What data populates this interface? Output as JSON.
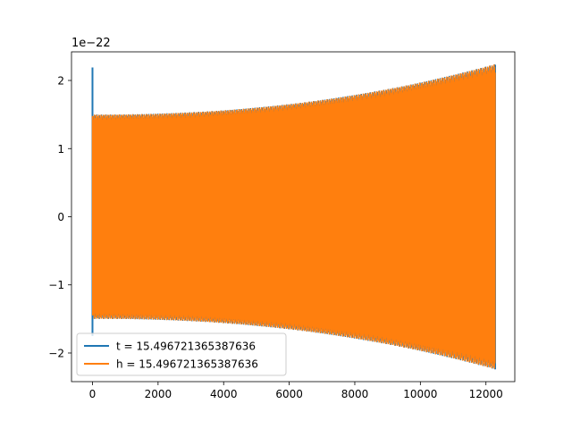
{
  "chart_data": {
    "type": "line",
    "title": "",
    "xlabel": "",
    "ylabel": "",
    "xlim": [
      -640,
      12880
    ],
    "ylim": [
      -2.42,
      2.42
    ],
    "y_scale_label": "1e−22",
    "x_ticks": [
      0,
      2000,
      4000,
      6000,
      8000,
      10000,
      12000
    ],
    "x_tick_labels": [
      "0",
      "2000",
      "4000",
      "6000",
      "8000",
      "10000",
      "12000"
    ],
    "y_ticks": [
      -2,
      -1,
      0,
      1,
      2
    ],
    "y_tick_labels": [
      "−2",
      "−1",
      "0",
      "1",
      "2"
    ],
    "grid": false,
    "legend_position": "lower-left",
    "series": [
      {
        "name": "t = 15.496721365387636",
        "color": "#1f77b4",
        "x_range": [
          0,
          12280
        ],
        "envelope_start": 1.5,
        "envelope_end": 2.24,
        "spikes": [
          {
            "x": 0,
            "y_min": -1.75,
            "y_max": 2.19
          },
          {
            "x": 12280,
            "y_min": -2.24,
            "y_max": 2.23
          }
        ]
      },
      {
        "name": "h = 15.496721365387636",
        "color": "#ff7f0e",
        "x_range": [
          0,
          12280
        ],
        "envelope_start": 1.5,
        "envelope_end": 2.24
      }
    ]
  }
}
